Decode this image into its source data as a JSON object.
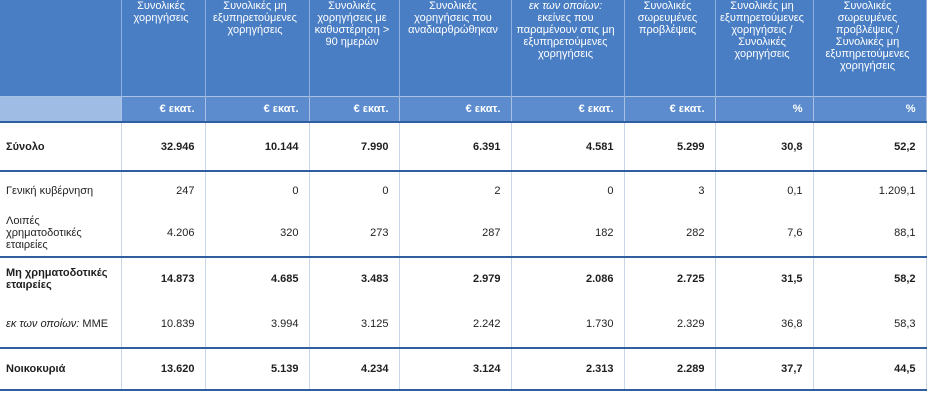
{
  "table": {
    "headers": [
      "",
      "Συνολικές χορηγήσεις",
      "Συνολικές μη εξυπηρετούμενες χορηγήσεις",
      "Συνολικές χορηγήσεις με καθυστέρηση > 90 ημερών",
      "Συνολικές χορηγήσεις που αναδιαρθρώθηκαν",
      "εκείνες που παραμένουν στις μη εξυπηρετούμενες χορηγήσεις",
      "Συνολικές σωρευμένες προβλέψεις",
      "Συνολικές μη εξυπηρετούμενες χορηγήσεις / Συνολικές χορηγήσεις",
      "Συνολικές σωρευμένες προβλέψεις / Συνολικές μη εξυπηρετούμενες χορηγήσεις"
    ],
    "header_prefix_col5": "εκ των οποίων:",
    "units": [
      "",
      "€ εκατ.",
      "€ εκατ.",
      "€ εκατ.",
      "€ εκατ.",
      "€ εκατ.",
      "€ εκατ.",
      "%",
      "%"
    ],
    "rows": [
      {
        "label": "Σύνολο",
        "values": [
          "32.946",
          "10.144",
          "7.990",
          "6.391",
          "4.581",
          "5.299",
          "30,8",
          "52,2"
        ]
      },
      {
        "label": "Γενική κυβέρνηση",
        "values": [
          "247",
          "0",
          "0",
          "2",
          "0",
          "3",
          "0,1",
          "1.209,1"
        ]
      },
      {
        "label": "Λοιπές χρηματοδοτικές εταιρείες",
        "values": [
          "4.206",
          "320",
          "273",
          "287",
          "182",
          "282",
          "7,6",
          "88,1"
        ]
      },
      {
        "label": "Μη χρηματοδοτικές εταιρείες",
        "values": [
          "14.873",
          "4.685",
          "3.483",
          "2.979",
          "2.086",
          "2.725",
          "31,5",
          "58,2"
        ]
      },
      {
        "label_prefix": "εκ των οποίων:",
        "label": "ΜΜΕ",
        "values": [
          "10.839",
          "3.994",
          "3.125",
          "2.242",
          "1.730",
          "2.329",
          "36,8",
          "58,3"
        ]
      },
      {
        "label": "Νοικοκυριά",
        "values": [
          "13.620",
          "5.139",
          "4.234",
          "3.124",
          "2.313",
          "2.289",
          "37,7",
          "44,5"
        ]
      }
    ]
  }
}
